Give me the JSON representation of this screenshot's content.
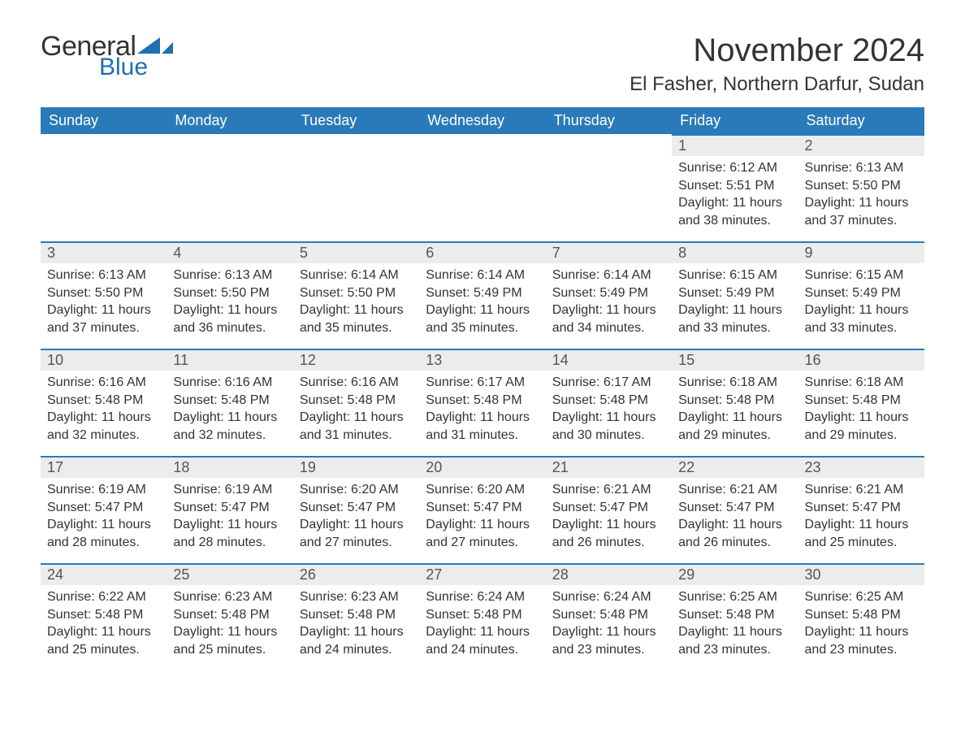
{
  "brand": {
    "text1": "General",
    "text2": "Blue",
    "accent": "#1f6fb2"
  },
  "title": "November 2024",
  "location": "El Fasher, Northern Darfur, Sudan",
  "colors": {
    "header_bg": "#2a7ab9",
    "header_fg": "#ffffff",
    "dayhead_bg": "#ececec",
    "dayhead_border": "#2a7ab9",
    "text": "#333333"
  },
  "weekdays": [
    "Sunday",
    "Monday",
    "Tuesday",
    "Wednesday",
    "Thursday",
    "Friday",
    "Saturday"
  ],
  "weeks": [
    [
      null,
      null,
      null,
      null,
      null,
      {
        "n": "1",
        "sunrise": "6:12 AM",
        "sunset": "5:51 PM",
        "daylight": "11 hours and 38 minutes."
      },
      {
        "n": "2",
        "sunrise": "6:13 AM",
        "sunset": "5:50 PM",
        "daylight": "11 hours and 37 minutes."
      }
    ],
    [
      {
        "n": "3",
        "sunrise": "6:13 AM",
        "sunset": "5:50 PM",
        "daylight": "11 hours and 37 minutes."
      },
      {
        "n": "4",
        "sunrise": "6:13 AM",
        "sunset": "5:50 PM",
        "daylight": "11 hours and 36 minutes."
      },
      {
        "n": "5",
        "sunrise": "6:14 AM",
        "sunset": "5:50 PM",
        "daylight": "11 hours and 35 minutes."
      },
      {
        "n": "6",
        "sunrise": "6:14 AM",
        "sunset": "5:49 PM",
        "daylight": "11 hours and 35 minutes."
      },
      {
        "n": "7",
        "sunrise": "6:14 AM",
        "sunset": "5:49 PM",
        "daylight": "11 hours and 34 minutes."
      },
      {
        "n": "8",
        "sunrise": "6:15 AM",
        "sunset": "5:49 PM",
        "daylight": "11 hours and 33 minutes."
      },
      {
        "n": "9",
        "sunrise": "6:15 AM",
        "sunset": "5:49 PM",
        "daylight": "11 hours and 33 minutes."
      }
    ],
    [
      {
        "n": "10",
        "sunrise": "6:16 AM",
        "sunset": "5:48 PM",
        "daylight": "11 hours and 32 minutes."
      },
      {
        "n": "11",
        "sunrise": "6:16 AM",
        "sunset": "5:48 PM",
        "daylight": "11 hours and 32 minutes."
      },
      {
        "n": "12",
        "sunrise": "6:16 AM",
        "sunset": "5:48 PM",
        "daylight": "11 hours and 31 minutes."
      },
      {
        "n": "13",
        "sunrise": "6:17 AM",
        "sunset": "5:48 PM",
        "daylight": "11 hours and 31 minutes."
      },
      {
        "n": "14",
        "sunrise": "6:17 AM",
        "sunset": "5:48 PM",
        "daylight": "11 hours and 30 minutes."
      },
      {
        "n": "15",
        "sunrise": "6:18 AM",
        "sunset": "5:48 PM",
        "daylight": "11 hours and 29 minutes."
      },
      {
        "n": "16",
        "sunrise": "6:18 AM",
        "sunset": "5:48 PM",
        "daylight": "11 hours and 29 minutes."
      }
    ],
    [
      {
        "n": "17",
        "sunrise": "6:19 AM",
        "sunset": "5:47 PM",
        "daylight": "11 hours and 28 minutes."
      },
      {
        "n": "18",
        "sunrise": "6:19 AM",
        "sunset": "5:47 PM",
        "daylight": "11 hours and 28 minutes."
      },
      {
        "n": "19",
        "sunrise": "6:20 AM",
        "sunset": "5:47 PM",
        "daylight": "11 hours and 27 minutes."
      },
      {
        "n": "20",
        "sunrise": "6:20 AM",
        "sunset": "5:47 PM",
        "daylight": "11 hours and 27 minutes."
      },
      {
        "n": "21",
        "sunrise": "6:21 AM",
        "sunset": "5:47 PM",
        "daylight": "11 hours and 26 minutes."
      },
      {
        "n": "22",
        "sunrise": "6:21 AM",
        "sunset": "5:47 PM",
        "daylight": "11 hours and 26 minutes."
      },
      {
        "n": "23",
        "sunrise": "6:21 AM",
        "sunset": "5:47 PM",
        "daylight": "11 hours and 25 minutes."
      }
    ],
    [
      {
        "n": "24",
        "sunrise": "6:22 AM",
        "sunset": "5:48 PM",
        "daylight": "11 hours and 25 minutes."
      },
      {
        "n": "25",
        "sunrise": "6:23 AM",
        "sunset": "5:48 PM",
        "daylight": "11 hours and 25 minutes."
      },
      {
        "n": "26",
        "sunrise": "6:23 AM",
        "sunset": "5:48 PM",
        "daylight": "11 hours and 24 minutes."
      },
      {
        "n": "27",
        "sunrise": "6:24 AM",
        "sunset": "5:48 PM",
        "daylight": "11 hours and 24 minutes."
      },
      {
        "n": "28",
        "sunrise": "6:24 AM",
        "sunset": "5:48 PM",
        "daylight": "11 hours and 23 minutes."
      },
      {
        "n": "29",
        "sunrise": "6:25 AM",
        "sunset": "5:48 PM",
        "daylight": "11 hours and 23 minutes."
      },
      {
        "n": "30",
        "sunrise": "6:25 AM",
        "sunset": "5:48 PM",
        "daylight": "11 hours and 23 minutes."
      }
    ]
  ],
  "labels": {
    "sunrise": "Sunrise: ",
    "sunset": "Sunset: ",
    "daylight": "Daylight: "
  }
}
